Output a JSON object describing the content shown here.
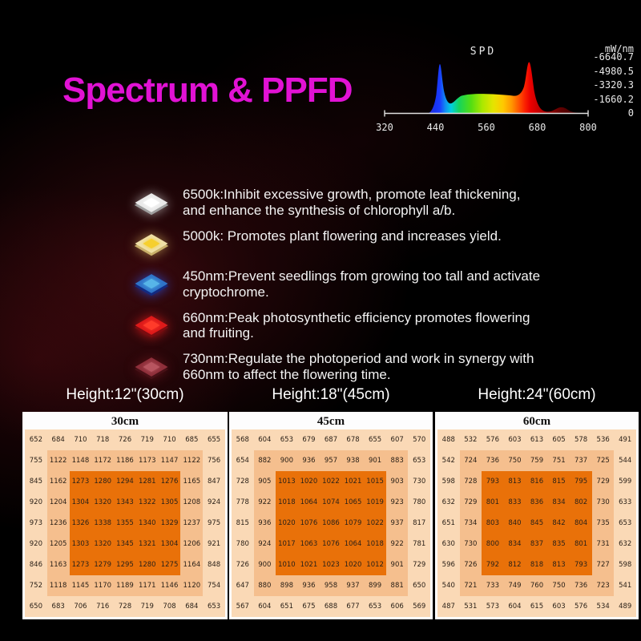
{
  "title": "Spectrum & PPFD",
  "colors": {
    "accent": "#e112d4",
    "heatmap_outer": "#fad9b6",
    "heatmap_middle": "#f5bf8e",
    "heatmap_inner": "#e97109"
  },
  "led_features": [
    {
      "icon": "white-led-chip-icon",
      "label": "6500k:Inhibit excessive growth, promote leaf thickening, and enhance the synthesis of chlorophyll a/b.",
      "edge": "#9f9f9f",
      "face": "#e9e9e9",
      "core": "#ffffff",
      "glow": "rgba(255,255,255,0.55)"
    },
    {
      "icon": "warm-white-led-chip-icon",
      "label": "5000k: Promotes plant flowering and increases yield.",
      "edge": "#c9b06a",
      "face": "#efe0a8",
      "core": "#f6cf2e",
      "glow": "rgba(255,220,120,0.55)"
    },
    {
      "icon": "blue-led-chip-icon",
      "label": "450nm:Prevent seedlings from growing too tall and activate cryptochrome.",
      "edge": "#132a80",
      "face": "#2f74c8",
      "core": "#57b5e8",
      "glow": "rgba(40,90,255,0.7)"
    },
    {
      "icon": "red-led-chip-icon",
      "label": "660nm:Peak photosynthetic efficiency promotes flowering and fruiting.",
      "edge": "#7c0c10",
      "face": "#dd1a1a",
      "core": "#ff3b2a",
      "glow": "rgba(255,30,30,0.75)"
    },
    {
      "icon": "deep-red-led-chip-icon",
      "label": "730nm:Regulate the photoperiod and work in synergy with 660nm to affect the flowering time.",
      "edge": "#471016",
      "face": "#8e2f3a",
      "core": "#b85560",
      "glow": "rgba(150,30,40,0.5)"
    }
  ],
  "chart_data": [
    {
      "type": "area",
      "title": "SPD",
      "xlabel": "",
      "ylabel": "mW/nm",
      "xlim": [
        320,
        800
      ],
      "ylim": [
        0,
        6640.7
      ],
      "x_ticks": [
        320,
        440,
        560,
        680,
        800
      ],
      "y_ticks": [
        0,
        1660.2,
        3320.3,
        4980.5,
        6640.7
      ],
      "legend": "none",
      "grid": false,
      "series": [
        {
          "name": "SPD",
          "x": [
            430,
            440,
            445,
            450,
            455,
            465,
            480,
            500,
            530,
            560,
            590,
            620,
            640,
            650,
            655,
            660,
            665,
            675,
            690,
            705,
            720,
            730,
            745,
            760,
            780
          ],
          "y": [
            0,
            1500,
            4200,
            6250,
            4300,
            1700,
            1450,
            2250,
            2500,
            2480,
            2380,
            2250,
            2600,
            4200,
            5700,
            6500,
            5200,
            1900,
            700,
            420,
            520,
            650,
            420,
            150,
            0
          ]
        }
      ]
    },
    {
      "type": "heatmap",
      "height_label": "Height:12\"(30cm)",
      "title": "30cm",
      "values": [
        [
          652,
          684,
          710,
          718,
          726,
          719,
          710,
          685,
          655
        ],
        [
          755,
          1122,
          1148,
          1172,
          1186,
          1173,
          1147,
          1122,
          756
        ],
        [
          845,
          1162,
          1273,
          1280,
          1294,
          1281,
          1276,
          1165,
          847
        ],
        [
          920,
          1204,
          1304,
          1320,
          1343,
          1322,
          1305,
          1208,
          924
        ],
        [
          973,
          1236,
          1326,
          1338,
          1355,
          1340,
          1329,
          1237,
          975
        ],
        [
          920,
          1205,
          1303,
          1320,
          1345,
          1321,
          1304,
          1206,
          921
        ],
        [
          846,
          1163,
          1273,
          1279,
          1295,
          1280,
          1275,
          1164,
          848
        ],
        [
          752,
          1118,
          1145,
          1170,
          1189,
          1171,
          1146,
          1120,
          754
        ],
        [
          650,
          683,
          706,
          716,
          728,
          719,
          708,
          684,
          653
        ]
      ]
    },
    {
      "type": "heatmap",
      "height_label": "Height:18\"(45cm)",
      "title": "45cm",
      "values": [
        [
          568,
          604,
          653,
          679,
          687,
          678,
          655,
          607,
          570
        ],
        [
          654,
          882,
          900,
          936,
          957,
          938,
          901,
          883,
          653
        ],
        [
          728,
          905,
          1013,
          1020,
          1022,
          1021,
          1015,
          903,
          730
        ],
        [
          778,
          922,
          1018,
          1064,
          1074,
          1065,
          1019,
          923,
          780
        ],
        [
          815,
          936,
          1020,
          1076,
          1086,
          1079,
          1022,
          937,
          817
        ],
        [
          780,
          924,
          1017,
          1063,
          1076,
          1064,
          1018,
          922,
          781
        ],
        [
          726,
          900,
          1010,
          1021,
          1023,
          1020,
          1012,
          901,
          729
        ],
        [
          647,
          880,
          898,
          936,
          958,
          937,
          899,
          881,
          650
        ],
        [
          567,
          604,
          651,
          675,
          688,
          677,
          653,
          606,
          569
        ]
      ]
    },
    {
      "type": "heatmap",
      "height_label": "Height:24\"(60cm)",
      "title": "60cm",
      "values": [
        [
          488,
          532,
          576,
          603,
          613,
          605,
          578,
          536,
          491
        ],
        [
          542,
          724,
          736,
          750,
          759,
          751,
          737,
          725,
          544
        ],
        [
          598,
          728,
          793,
          813,
          816,
          815,
          795,
          729,
          599
        ],
        [
          632,
          729,
          801,
          833,
          836,
          834,
          802,
          730,
          633
        ],
        [
          651,
          734,
          803,
          840,
          845,
          842,
          804,
          735,
          653
        ],
        [
          630,
          730,
          800,
          834,
          837,
          835,
          801,
          731,
          632
        ],
        [
          596,
          726,
          792,
          812,
          818,
          813,
          793,
          727,
          598
        ],
        [
          540,
          721,
          733,
          749,
          760,
          750,
          736,
          723,
          541
        ],
        [
          487,
          531,
          573,
          604,
          615,
          603,
          576,
          534,
          489
        ]
      ]
    }
  ]
}
